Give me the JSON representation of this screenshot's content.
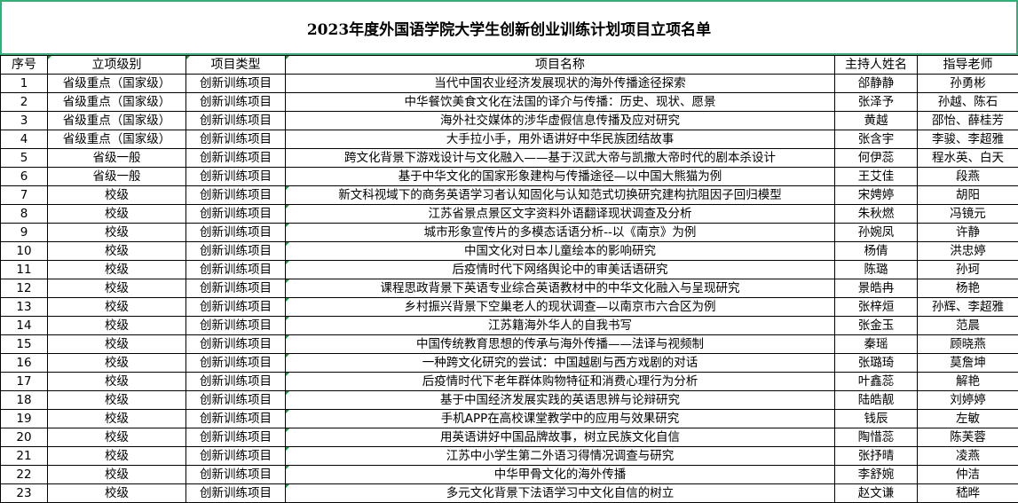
{
  "title": "2023年度外国语学院大学生创新创业训练计划项目立项名单",
  "columns": [
    "序号",
    "立项级别",
    "项目类型",
    "项目名称",
    "主持人姓名",
    "指导老师"
  ],
  "rows": [
    [
      "1",
      "省级重点（国家级）",
      "创新训练项目",
      "当代中国农业经济发展现状的海外传播途径探索",
      "郃静静",
      "孙勇彬"
    ],
    [
      "2",
      "省级重点（国家级）",
      "创新训练项目",
      "中华餐饮美食文化在法国的译介与传播：历史、现状、愿景",
      "张泽予",
      "孙越、陈石"
    ],
    [
      "3",
      "省级重点（国家级）",
      "创新训练项目",
      "海外社交媒体的涉华虚假信息传播及应对研究",
      "黄越",
      "邵怡、薛桂芳"
    ],
    [
      "4",
      "省级重点（国家级）",
      "创新训练项目",
      "大手拉小手，用外语讲好中华民族团结故事",
      "张含宇",
      "李骏、李超雅"
    ],
    [
      "5",
      "省级一般",
      "创新训练项目",
      "跨文化背景下游戏设计与文化融入——基于汉武大帝与凯撒大帝时代的剧本杀设计",
      "何伊蕊",
      "程水英、白天"
    ],
    [
      "6",
      "省级一般",
      "创新训练项目",
      "基于中华文化的国家形象建构与传播途径—以中国大熊猫为例",
      "王艾佳",
      "段燕"
    ],
    [
      "7",
      "校级",
      "创新训练项目",
      "新文科视域下的商务英语学习者认知固化与认知范式切换研究建构抗阻因子回归模型",
      "宋娉婷",
      "胡阳"
    ],
    [
      "8",
      "校级",
      "创新训练项目",
      "江苏省景点景区文字资料外语翻译现状调查及分析",
      "朱秋燃",
      "冯镜元"
    ],
    [
      "9",
      "校级",
      "创新训练项目",
      "城市形象宣传片的多模态话语分析--以《南京》为例",
      "孙婉凤",
      "许静"
    ],
    [
      "10",
      "校级",
      "创新训练项目",
      "中国文化对日本儿童绘本的影响研究",
      "杨倩",
      "洪忠婷"
    ],
    [
      "11",
      "校级",
      "创新训练项目",
      "后疫情时代下网络舆论中的审美话语研究",
      "陈璐",
      "孙珂"
    ],
    [
      "12",
      "校级",
      "创新训练项目",
      "课程思政背景下英语专业综合英语教材中的中华文化融入与呈现研究",
      "景皓冉",
      "杨艳"
    ],
    [
      "13",
      "校级",
      "创新训练项目",
      "乡村振兴背景下空巢老人的现状调查—以南京市六合区为例",
      "张梓烜",
      "孙辉、李超雅"
    ],
    [
      "14",
      "校级",
      "创新训练项目",
      "江苏籍海外华人的自我书写",
      "张金玉",
      "范晨"
    ],
    [
      "15",
      "校级",
      "创新训练项目",
      "中国传统教育思想的传承与海外传播——法译与视频制",
      "秦瑶",
      "顾晓燕"
    ],
    [
      "16",
      "校级",
      "创新训练项目",
      "一种跨文化研究的尝试：中国越剧与西方戏剧的对话",
      "张璐琦",
      "莫詹坤"
    ],
    [
      "17",
      "校级",
      "创新训练项目",
      "后疫情时代下老年群体购物特征和消费心理行为分析",
      "叶鑫蕊",
      "解艳"
    ],
    [
      "18",
      "校级",
      "创新训练项目",
      "基于中国经济发展实践的英语思辨与论辩研究",
      "陆皓靓",
      "刘婷婷"
    ],
    [
      "19",
      "校级",
      "创新训练项目",
      "手机APP在高校课堂教学中的应用与效果研究",
      "钱辰",
      "左敏"
    ],
    [
      "20",
      "校级",
      "创新训练项目",
      "用英语讲好中国品牌故事，树立民族文化自信",
      "陶惜蕊",
      "陈芙蓉"
    ],
    [
      "21",
      "校级",
      "创新训练项目",
      "江苏中小学生第二外语习得情况调查与研究",
      "张抒晴",
      "凌燕"
    ],
    [
      "22",
      "校级",
      "创新训练项目",
      "中华甲骨文化的海外传播",
      "李舒婉",
      "仲洁"
    ],
    [
      "23",
      "校级",
      "创新训练项目",
      "多元文化背景下法语学习中文化自信的树立",
      "赵文谦",
      "嵇晔"
    ]
  ]
}
